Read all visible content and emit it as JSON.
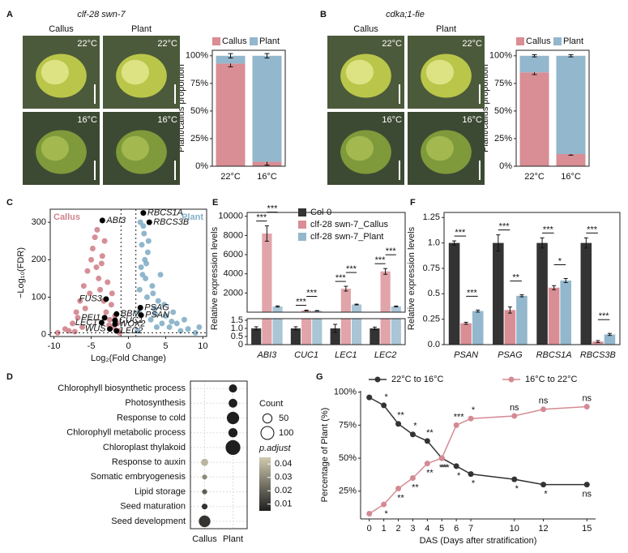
{
  "chart_data": [
    {
      "type": "bar",
      "stacked": true,
      "panel": "A",
      "photo_title": "clf-28 swn-7",
      "photo_columns": [
        "Callus",
        "Plant"
      ],
      "photo_labels": [
        [
          "22°C",
          "22°C"
        ],
        [
          "16°C",
          "16°C"
        ]
      ],
      "ylabel": "Plant/callus proportion",
      "categories": [
        "22°C",
        "16°C"
      ],
      "series": [
        {
          "name": "Callus",
          "color": "#d98d94",
          "values": [
            93,
            4
          ],
          "errors": [
            3,
            3
          ]
        },
        {
          "name": "Plant",
          "color": "#93b7cc",
          "values": [
            7,
            96
          ],
          "errors": [
            2,
            2
          ]
        }
      ],
      "ylim": [
        0,
        105
      ],
      "yticks": [
        {
          "value": 0,
          "label": "0%"
        },
        {
          "value": 25,
          "label": "25%"
        },
        {
          "value": 50,
          "label": "50%"
        },
        {
          "value": 75,
          "label": "75%"
        },
        {
          "value": 100,
          "label": "100%"
        }
      ]
    },
    {
      "type": "bar",
      "stacked": true,
      "panel": "B",
      "photo_title": "cdka;1-fie",
      "photo_columns": [
        "Callus",
        "Plant"
      ],
      "photo_labels": [
        [
          "22°C",
          "22°C"
        ],
        [
          "16°C",
          "16°C"
        ]
      ],
      "ylabel": "Plant/callus proportion",
      "categories": [
        "22°C",
        "16°C"
      ],
      "series": [
        {
          "name": "Callus",
          "color": "#d98d94",
          "values": [
            85,
            11
          ],
          "errors": [
            2,
            1
          ]
        },
        {
          "name": "Plant",
          "color": "#93b7cc",
          "values": [
            15,
            89
          ],
          "errors": [
            1,
            1
          ]
        }
      ],
      "ylim": [
        0,
        105
      ],
      "yticks": [
        {
          "value": 0,
          "label": "0%"
        },
        {
          "value": 25,
          "label": "25%"
        },
        {
          "value": 50,
          "label": "50%"
        },
        {
          "value": 75,
          "label": "75%"
        },
        {
          "value": 100,
          "label": "100%"
        }
      ]
    },
    {
      "type": "scatter",
      "panel": "C",
      "xlabel": "Log₂(Fold Change)",
      "ylabel": "−Log₁₀(FDR)",
      "series": [
        {
          "name": "Callus",
          "color": "#d0838c",
          "x": [
            -9.5,
            -8,
            -7.5,
            -7,
            -6.5,
            -6.2,
            -6,
            -5.5,
            -5.2,
            -5,
            -4.8,
            -4.5,
            -4.3,
            -4,
            -3.8,
            -3.5,
            -3.3,
            -3,
            -2.8,
            -2.5,
            -2.3,
            -2,
            -1.8,
            -1.5,
            -1.3,
            -1.2,
            -6.8,
            -5.8,
            -4.2,
            -3.2,
            -2.2,
            -8.5,
            -7.2,
            -3.6,
            -2.6
          ],
          "values": [
            5,
            10,
            30,
            60,
            90,
            20,
            130,
            170,
            110,
            200,
            230,
            260,
            180,
            150,
            120,
            210,
            90,
            60,
            140,
            40,
            80,
            20,
            50,
            30,
            10,
            5,
            45,
            70,
            280,
            250,
            110,
            15,
            8,
            190,
            25
          ]
        },
        {
          "name": "Plant",
          "color": "#85afc7",
          "x": [
            1.2,
            1.4,
            1.5,
            1.7,
            1.8,
            2,
            2.2,
            2.3,
            2.5,
            2.7,
            3,
            3.2,
            3.5,
            3.8,
            4,
            4.3,
            4.5,
            5,
            5.5,
            6,
            6.5,
            7,
            7.5,
            8,
            9,
            9.5,
            2.1,
            2.6,
            3.3,
            1.6,
            4.8,
            5.8,
            1.9,
            3.6,
            2.4
          ],
          "values": [
            10,
            60,
            120,
            180,
            240,
            290,
            200,
            150,
            100,
            250,
            40,
            130,
            70,
            20,
            90,
            160,
            30,
            50,
            20,
            60,
            30,
            10,
            40,
            15,
            5,
            20,
            270,
            220,
            110,
            300,
            80,
            35,
            160,
            55,
            190
          ]
        }
      ],
      "labeled_genes": [
        {
          "name": "ABI3",
          "x": -3.5,
          "y": 305
        },
        {
          "name": "RBCS1A",
          "x": 2.0,
          "y": 325
        },
        {
          "name": "RBCS3B",
          "x": 2.8,
          "y": 300
        },
        {
          "name": "FUS3",
          "x": -3.0,
          "y": 95
        },
        {
          "name": "PSAG",
          "x": 1.6,
          "y": 72
        },
        {
          "name": "PSAN",
          "x": 1.7,
          "y": 52
        },
        {
          "name": "BBM",
          "x": -1.6,
          "y": 55
        },
        {
          "name": "PEI1",
          "x": -3.2,
          "y": 45
        },
        {
          "name": "CUC1",
          "x": -1.8,
          "y": 38
        },
        {
          "name": "LEC1",
          "x": -3.6,
          "y": 32
        },
        {
          "name": "WOX2",
          "x": -1.8,
          "y": 28
        },
        {
          "name": "WUS",
          "x": -2.5,
          "y": 15
        },
        {
          "name": "LEC2",
          "x": -1.6,
          "y": 10
        }
      ],
      "reference_lines": {
        "x": [
          -1,
          1
        ],
        "y": [
          5
        ]
      },
      "xlim": [
        -10.5,
        10.5
      ],
      "xticks": [
        -10,
        -5,
        0,
        5,
        10
      ],
      "ylim": [
        -5,
        335
      ],
      "yticks": [
        0,
        100,
        200,
        300
      ]
    },
    {
      "type": "bar",
      "panel": "E",
      "ylabel": "Relative expression levels",
      "categories": [
        "ABI3",
        "CUC1",
        "LEC1",
        "LEC2"
      ],
      "series": [
        {
          "name": "Col-0",
          "color": "#333333",
          "values": [
            1,
            1,
            1,
            1
          ],
          "errors": [
            0.1,
            0.1,
            0.25,
            0.08
          ]
        },
        {
          "name": "clf-28 swn-7_Callus",
          "color": "#d98d94",
          "values": [
            8200,
            180,
            2450,
            4250
          ],
          "errors": [
            800,
            30,
            250,
            300
          ]
        },
        {
          "name": "clf-28 swn-7_Plant",
          "color": "#93b7cc",
          "values": [
            600,
            150,
            800,
            600
          ],
          "errors": [
            60,
            20,
            40,
            50
          ]
        }
      ],
      "significance": [
        [
          "***",
          "***"
        ],
        [
          "***",
          "***"
        ],
        [
          "***",
          "***"
        ],
        [
          "***",
          "***"
        ]
      ],
      "ylim": [
        0,
        1.6
      ],
      "yticks": [
        0,
        0.5,
        {
          "value": 1,
          "label": "1.0"
        },
        1.5
      ],
      "ylim_upper": [
        0,
        10400
      ],
      "yticks_upper": [
        2000,
        4000,
        6000,
        8000,
        10000
      ]
    },
    {
      "type": "bar",
      "panel": "F",
      "ylabel": "Relative expression levels",
      "categories": [
        "PSAN",
        "PSAG",
        "RBCS1A",
        "RBCS3B"
      ],
      "series": [
        {
          "name": "Col-0",
          "color": "#333333",
          "values": [
            1,
            1,
            1,
            1
          ],
          "errors": [
            0.02,
            0.08,
            0.05,
            0.05
          ]
        },
        {
          "name": "clf-28 swn-7_Callus",
          "color": "#d98d94",
          "values": [
            0.21,
            0.34,
            0.56,
            0.03
          ],
          "errors": [
            0.01,
            0.03,
            0.02,
            0.01
          ]
        },
        {
          "name": "clf-28 swn-7_Plant",
          "color": "#93b7cc",
          "values": [
            0.33,
            0.48,
            0.63,
            0.1
          ],
          "errors": [
            0.01,
            0.01,
            0.02,
            0.01
          ]
        }
      ],
      "significance": [
        [
          "***",
          "***"
        ],
        [
          "***",
          "**"
        ],
        [
          "***",
          "*"
        ],
        [
          "***",
          "***"
        ]
      ],
      "ylim": [
        0,
        1.3
      ],
      "yticks": [
        {
          "value": 0,
          "label": "0.0"
        },
        0.25,
        0.5,
        0.75,
        {
          "value": 1,
          "label": "1.0"
        },
        1.25
      ]
    },
    {
      "type": "dot",
      "panel": "D",
      "groups": [
        "Callus",
        "Plant"
      ],
      "terms": [
        "Chlorophyll biosynthetic process",
        "Photosynthesis",
        "Response to cold",
        "Chlorophyll metabolic process",
        "Chloroplast thylakoid",
        "Response to auxin",
        "Somatic embryogenesis",
        "Lipid storage",
        "Seed maturation",
        "Seed development"
      ],
      "group_index": [
        1,
        1,
        1,
        1,
        1,
        0,
        0,
        0,
        0,
        0
      ],
      "counts": [
        40,
        45,
        90,
        50,
        130,
        30,
        15,
        15,
        20,
        80
      ],
      "p_adjust": [
        0.005,
        0.005,
        0.005,
        0.005,
        0.005,
        0.04,
        0.03,
        0.02,
        0.01,
        0.01
      ],
      "count_title": "Count",
      "count_legend": [
        50,
        100
      ],
      "color_title": "p.adjust",
      "clim": [
        0.005,
        0.045
      ],
      "cticks": [
        0.04,
        0.03,
        0.02,
        0.01
      ],
      "color_low": "#1f1f1f",
      "color_high": "#cfcab0"
    },
    {
      "type": "line",
      "panel": "G",
      "xlabel": "DAS (Days after stratification)",
      "ylabel": "Percentage of Plant (%)",
      "x": [
        0,
        1,
        2,
        3,
        4,
        5,
        6,
        7,
        10,
        12,
        15
      ],
      "series": [
        {
          "name": "22°C to 16°C",
          "color": "#333333",
          "values": [
            96,
            90,
            76,
            68,
            63,
            50,
            44,
            38,
            34,
            30,
            30
          ],
          "annotations": [
            null,
            "*",
            "**",
            "*",
            "**",
            "***",
            "*",
            "*",
            "*",
            "*",
            "ns"
          ]
        },
        {
          "name": "16°C to 22°C",
          "color": "#d48a93",
          "values": [
            8,
            15,
            27,
            35,
            46,
            50,
            75,
            80,
            82,
            87,
            89
          ],
          "annotations": [
            null,
            "*",
            "**",
            "**",
            "**",
            "**",
            "***",
            "*",
            "ns",
            "ns",
            "ns"
          ]
        }
      ],
      "xlim": [
        -0.6,
        15.6
      ],
      "xticks": [
        0,
        1,
        2,
        3,
        4,
        5,
        6,
        7,
        10,
        12,
        15
      ],
      "ylim": [
        4,
        101
      ],
      "yticks": [
        {
          "value": 25,
          "label": "25%"
        },
        {
          "value": 50,
          "label": "50%"
        },
        {
          "value": 75,
          "label": "75%"
        },
        {
          "value": 100,
          "label": "100%"
        }
      ]
    }
  ]
}
